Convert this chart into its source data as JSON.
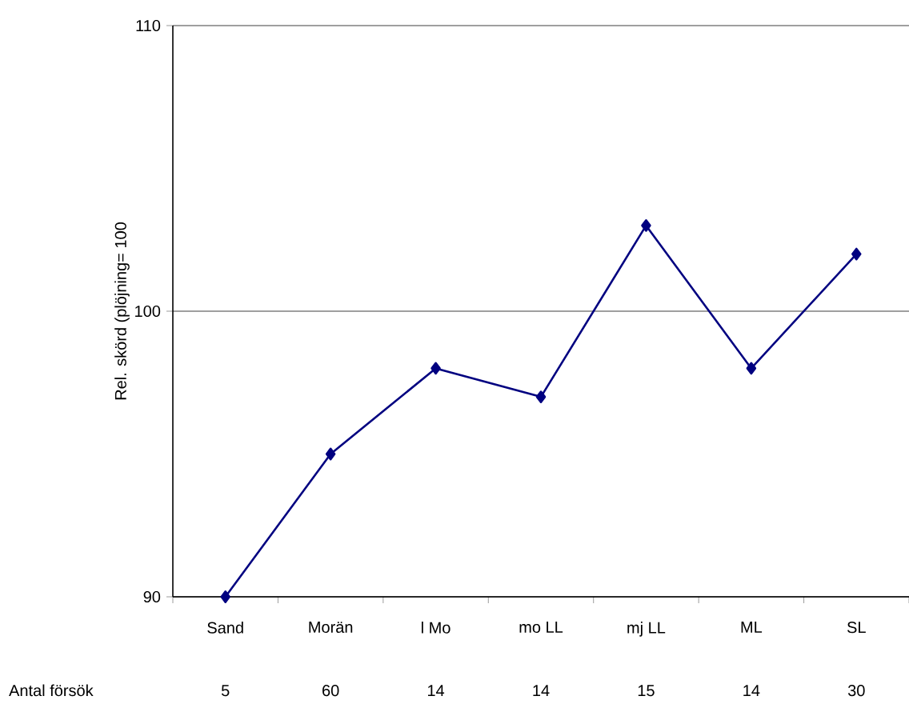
{
  "chart_data": {
    "type": "line",
    "ylabel": "Rel. skörd (plöjning= 100",
    "categories": [
      "Sand",
      "Morän",
      "l Mo",
      "mo LL",
      "mj LL",
      "ML",
      "SL"
    ],
    "values": [
      90,
      95,
      98,
      97,
      103,
      98,
      102
    ],
    "color": "#000080",
    "marker": "diamond",
    "line_style": "solid",
    "ylim": [
      90,
      110
    ],
    "yticks": [
      90,
      100,
      110
    ],
    "grid": "y",
    "annotations": [
      "Antal försök",
      "5",
      "60",
      "14",
      "14",
      "15",
      "14",
      "30"
    ]
  }
}
